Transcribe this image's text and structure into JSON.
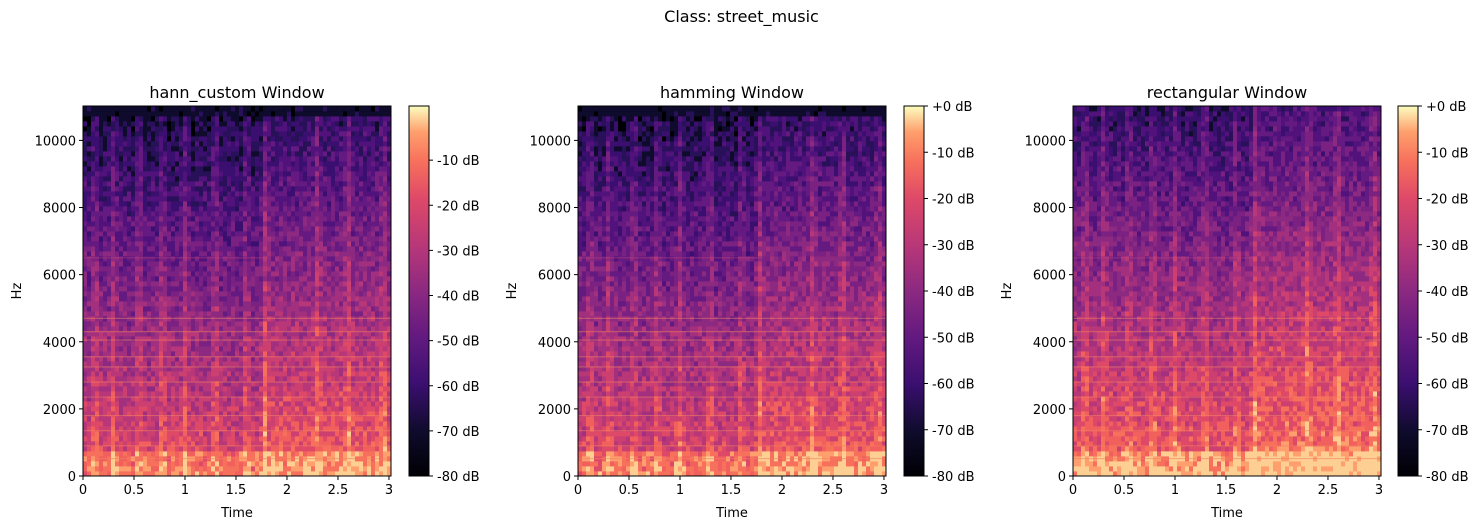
{
  "figure": {
    "suptitle": "Class: street_music"
  },
  "chart_data": [
    {
      "type": "heatmap",
      "title": "hann_custom Window",
      "xlabel": "Time",
      "ylabel": "Hz",
      "x_ticks": [
        "0",
        "0.5",
        "1",
        "1.5",
        "2",
        "2.5",
        "3"
      ],
      "x_tick_values": [
        0,
        0.5,
        1,
        1.5,
        2,
        2.5,
        3
      ],
      "xlim": [
        0,
        3.02
      ],
      "y_ticks": [
        "0",
        "2000",
        "4000",
        "6000",
        "8000",
        "10000"
      ],
      "y_tick_values": [
        0,
        2000,
        4000,
        6000,
        8000,
        10000
      ],
      "ylim": [
        0,
        11025
      ],
      "colorbar": {
        "label_ticks": [
          "-10 dB",
          "-20 dB",
          "-30 dB",
          "-40 dB",
          "-50 dB",
          "-60 dB",
          "-70 dB",
          "-80 dB"
        ],
        "tick_values": [
          -10,
          -20,
          -30,
          -40,
          -50,
          -60,
          -70,
          -80
        ],
        "range": [
          -80,
          2
        ],
        "colormap": "magma"
      },
      "style": {
        "noise_top_band": true
      }
    },
    {
      "type": "heatmap",
      "title": "hamming Window",
      "xlabel": "Time",
      "ylabel": "Hz",
      "x_ticks": [
        "0",
        "0.5",
        "1",
        "1.5",
        "2",
        "2.5",
        "3"
      ],
      "x_tick_values": [
        0,
        0.5,
        1,
        1.5,
        2,
        2.5,
        3
      ],
      "xlim": [
        0,
        3.02
      ],
      "y_ticks": [
        "0",
        "2000",
        "4000",
        "6000",
        "8000",
        "10000"
      ],
      "y_tick_values": [
        0,
        2000,
        4000,
        6000,
        8000,
        10000
      ],
      "ylim": [
        0,
        11025
      ],
      "colorbar": {
        "label_ticks": [
          "+0 dB",
          "-10 dB",
          "-20 dB",
          "-30 dB",
          "-40 dB",
          "-50 dB",
          "-60 dB",
          "-70 dB",
          "-80 dB"
        ],
        "tick_values": [
          0,
          -10,
          -20,
          -30,
          -40,
          -50,
          -60,
          -70,
          -80
        ],
        "range": [
          -80,
          0
        ],
        "colormap": "magma"
      },
      "style": {
        "noise_top_band": true
      }
    },
    {
      "type": "heatmap",
      "title": "rectangular Window",
      "xlabel": "Time",
      "ylabel": "Hz",
      "x_ticks": [
        "0",
        "0.5",
        "1",
        "1.5",
        "2",
        "2.5",
        "3"
      ],
      "x_tick_values": [
        0,
        0.5,
        1,
        1.5,
        2,
        2.5,
        3
      ],
      "xlim": [
        0,
        3.02
      ],
      "y_ticks": [
        "0",
        "2000",
        "4000",
        "6000",
        "8000",
        "10000"
      ],
      "y_tick_values": [
        0,
        2000,
        4000,
        6000,
        8000,
        10000
      ],
      "ylim": [
        0,
        11025
      ],
      "colorbar": {
        "label_ticks": [
          "+0 dB",
          "-10 dB",
          "-20 dB",
          "-30 dB",
          "-40 dB",
          "-50 dB",
          "-60 dB",
          "-70 dB",
          "-80 dB"
        ],
        "tick_values": [
          0,
          -10,
          -20,
          -30,
          -40,
          -50,
          -60,
          -70,
          -80
        ],
        "range": [
          -80,
          0
        ],
        "colormap": "magma"
      },
      "style": {
        "noise_top_band": false
      }
    }
  ]
}
